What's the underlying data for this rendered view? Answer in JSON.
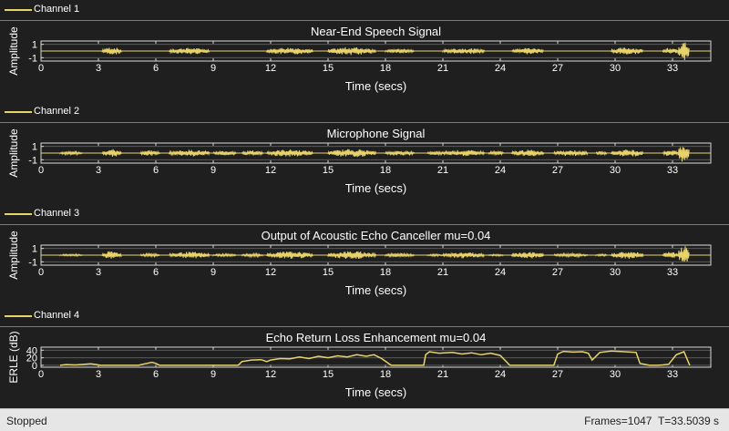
{
  "panels": [
    {
      "legend": "Channel 1",
      "title": "Near-End Speech Signal",
      "ylabel": "Amplitude",
      "xlabel": "Time (secs)",
      "yticks": [
        "1",
        "-1"
      ]
    },
    {
      "legend": "Channel 2",
      "title": "Microphone Signal",
      "ylabel": "Amplitude",
      "xlabel": "Time (secs)",
      "yticks": [
        "1",
        "-1"
      ]
    },
    {
      "legend": "Channel 3",
      "title": "Output of Acoustic Echo Canceller mu=0.04",
      "ylabel": "Amplitude",
      "xlabel": "Time (secs)",
      "yticks": [
        "1",
        "-1"
      ]
    },
    {
      "legend": "Channel 4",
      "title": "Echo Return Loss Enhancement mu=0.04",
      "ylabel": "ERLE (dB)",
      "xlabel": "Time (secs)",
      "yticks": [
        "40",
        "20",
        "0"
      ]
    }
  ],
  "xticks": [
    "0",
    "3",
    "6",
    "9",
    "12",
    "15",
    "18",
    "21",
    "24",
    "27",
    "30",
    "33"
  ],
  "status": {
    "state": "Stopped",
    "frames": "Frames=1047",
    "time": "T=33.5039 s"
  },
  "colors": {
    "trace": "#e8d36a",
    "background": "#1f1f1f",
    "axis": "#d9d9d9"
  },
  "chart_data": [
    {
      "type": "line",
      "title": "Near-End Speech Signal",
      "xlabel": "Time (secs)",
      "ylabel": "Amplitude",
      "xlim": [
        0,
        35
      ],
      "ylim": [
        -1.5,
        1.5
      ],
      "bursts": [
        [
          3.2,
          4.2,
          0.6
        ],
        [
          6.7,
          8.8,
          0.5
        ],
        [
          11.8,
          14.2,
          0.55
        ],
        [
          15.0,
          17.5,
          0.6
        ],
        [
          18.0,
          19.5,
          0.3
        ],
        [
          21.0,
          23.2,
          0.45
        ],
        [
          24.6,
          26.3,
          0.5
        ],
        [
          29.8,
          31.5,
          0.55
        ],
        [
          32.5,
          33.3,
          0.5
        ],
        [
          33.3,
          33.9,
          1.4
        ]
      ]
    },
    {
      "type": "line",
      "title": "Microphone Signal",
      "xlabel": "Time (secs)",
      "ylabel": "Amplitude",
      "xlim": [
        0,
        35
      ],
      "ylim": [
        -1.5,
        1.5
      ],
      "bursts": [
        [
          1.0,
          2.2,
          0.25
        ],
        [
          3.2,
          4.2,
          0.6
        ],
        [
          5.2,
          6.2,
          0.4
        ],
        [
          6.7,
          8.8,
          0.5
        ],
        [
          9.0,
          10.2,
          0.35
        ],
        [
          10.5,
          11.6,
          0.4
        ],
        [
          11.8,
          14.2,
          0.55
        ],
        [
          15.0,
          17.5,
          0.6
        ],
        [
          18.0,
          19.5,
          0.35
        ],
        [
          20.2,
          21.0,
          0.3
        ],
        [
          21.0,
          23.2,
          0.45
        ],
        [
          23.4,
          24.2,
          0.3
        ],
        [
          24.6,
          26.3,
          0.5
        ],
        [
          26.8,
          28.6,
          0.45
        ],
        [
          29.0,
          29.6,
          0.3
        ],
        [
          29.8,
          31.5,
          0.55
        ],
        [
          32.5,
          33.3,
          0.5
        ],
        [
          33.3,
          33.9,
          1.4
        ]
      ]
    },
    {
      "type": "line",
      "title": "Output of Acoustic Echo Canceller mu=0.04",
      "xlabel": "Time (secs)",
      "ylabel": "Amplitude",
      "xlim": [
        0,
        35
      ],
      "ylim": [
        -1.5,
        1.5
      ],
      "bursts": [
        [
          1.0,
          2.2,
          0.15
        ],
        [
          3.2,
          4.2,
          0.6
        ],
        [
          5.2,
          6.2,
          0.25
        ],
        [
          6.7,
          8.8,
          0.5
        ],
        [
          9.0,
          10.2,
          0.2
        ],
        [
          10.5,
          11.6,
          0.25
        ],
        [
          11.8,
          14.2,
          0.55
        ],
        [
          15.0,
          17.5,
          0.6
        ],
        [
          18.0,
          19.5,
          0.3
        ],
        [
          20.2,
          21.0,
          0.15
        ],
        [
          21.0,
          23.2,
          0.45
        ],
        [
          23.4,
          24.2,
          0.15
        ],
        [
          24.6,
          26.3,
          0.5
        ],
        [
          26.8,
          28.6,
          0.25
        ],
        [
          29.0,
          29.6,
          0.15
        ],
        [
          29.8,
          31.5,
          0.55
        ],
        [
          32.5,
          33.3,
          0.5
        ],
        [
          33.3,
          33.9,
          1.4
        ]
      ]
    },
    {
      "type": "line",
      "title": "Echo Return Loss Enhancement mu=0.04",
      "xlabel": "Time (secs)",
      "ylabel": "ERLE (dB)",
      "xlim": [
        0,
        35
      ],
      "ylim": [
        -5,
        48
      ],
      "x": [
        1.0,
        1.3,
        1.8,
        2.3,
        2.6,
        2.9,
        3.1,
        5.1,
        5.4,
        5.8,
        6.0,
        6.2,
        10.3,
        10.5,
        11.0,
        11.5,
        11.8,
        12.0,
        12.5,
        13.0,
        13.5,
        14.0,
        14.5,
        15.0,
        15.5,
        16.0,
        16.5,
        17.0,
        17.4,
        17.8,
        18.3,
        20.0,
        20.1,
        20.3,
        20.8,
        21.5,
        22.0,
        22.5,
        23.0,
        23.5,
        24.0,
        24.5,
        26.8,
        27.0,
        27.3,
        27.8,
        28.3,
        28.6,
        28.8,
        29.2,
        29.8,
        30.5,
        31.1,
        31.3,
        31.8,
        32.2,
        32.5,
        32.8,
        33.2,
        33.6,
        33.9
      ],
      "y": [
        0,
        2,
        1,
        3,
        4,
        2,
        0,
        0,
        4,
        8,
        5,
        0,
        0,
        10,
        14,
        15,
        10,
        14,
        18,
        17,
        22,
        18,
        24,
        20,
        25,
        22,
        28,
        24,
        28,
        18,
        0,
        0,
        28,
        36,
        32,
        34,
        30,
        33,
        28,
        32,
        26,
        0,
        0,
        30,
        37,
        35,
        36,
        32,
        14,
        34,
        38,
        36,
        34,
        5,
        0,
        0,
        1,
        3,
        28,
        36,
        0
      ]
    }
  ]
}
